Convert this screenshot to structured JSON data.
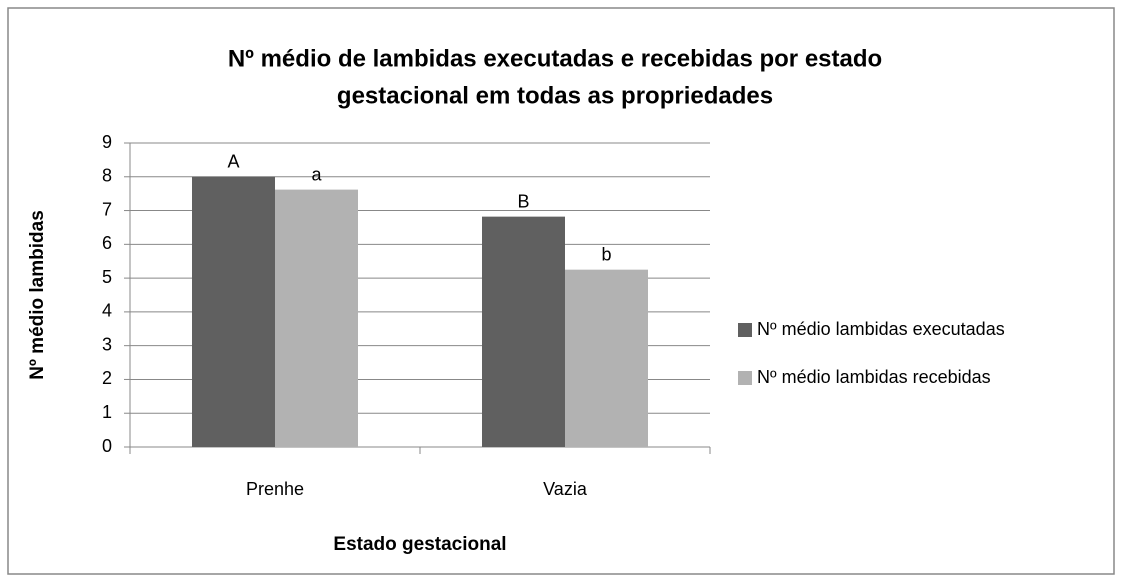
{
  "chart_data": {
    "type": "bar",
    "title": [
      "Nº médio de lambidas executadas e recebidas por estado",
      "gestacional em todas as propriedades"
    ],
    "x_label": "Estado gestacional",
    "y_label": "Nº médio lambidas",
    "categories": [
      "Prenhe",
      "Vazia"
    ],
    "series": [
      {
        "name": "Nº médio lambidas executadas",
        "color": "#606060",
        "values": [
          8.0,
          6.82
        ],
        "value_labels": [
          "A",
          "B"
        ]
      },
      {
        "name": "Nº médio lambidas recebidas",
        "color": "#b2b2b2",
        "values": [
          7.62,
          5.25
        ],
        "value_labels": [
          "a",
          "b"
        ]
      }
    ],
    "ylim": [
      0,
      9
    ],
    "yticks": [
      0,
      1,
      2,
      3,
      4,
      5,
      6,
      7,
      8,
      9
    ],
    "grid": true,
    "legend": "right"
  }
}
